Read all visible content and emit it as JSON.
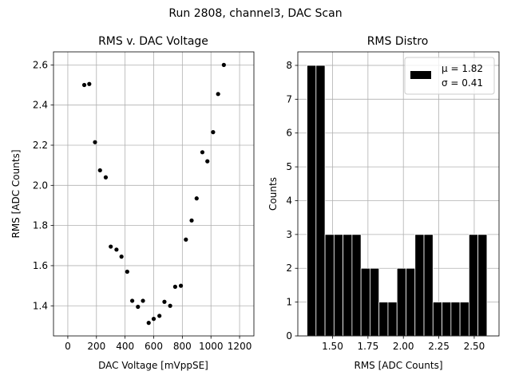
{
  "suptitle": "Run 2808, channel3, DAC Scan",
  "chart_data": [
    {
      "type": "scatter",
      "title": "RMS v. DAC Voltage",
      "xlabel": "DAC Voltage [mVppSE]",
      "ylabel": "RMS [ADC Counts]",
      "xlim": [
        -100,
        1300
      ],
      "ylim": [
        1.25,
        2.665
      ],
      "xticks": [
        0,
        200,
        400,
        600,
        800,
        1000,
        1200
      ],
      "yticks": [
        1.4,
        1.6,
        1.8,
        2.0,
        2.2,
        2.4,
        2.6
      ],
      "ytick_labels": [
        "1.4",
        "1.6",
        "1.8",
        "2.0",
        "2.2",
        "2.4",
        "2.6"
      ],
      "grid": true,
      "marker_color": "#000000",
      "points": [
        {
          "x": 115,
          "y": 2.5
        },
        {
          "x": 150,
          "y": 2.505
        },
        {
          "x": 190,
          "y": 2.215
        },
        {
          "x": 225,
          "y": 2.075
        },
        {
          "x": 265,
          "y": 2.04
        },
        {
          "x": 300,
          "y": 1.695
        },
        {
          "x": 340,
          "y": 1.68
        },
        {
          "x": 375,
          "y": 1.645
        },
        {
          "x": 415,
          "y": 1.57
        },
        {
          "x": 450,
          "y": 1.425
        },
        {
          "x": 490,
          "y": 1.395
        },
        {
          "x": 525,
          "y": 1.425
        },
        {
          "x": 565,
          "y": 1.315
        },
        {
          "x": 600,
          "y": 1.335
        },
        {
          "x": 640,
          "y": 1.35
        },
        {
          "x": 675,
          "y": 1.42
        },
        {
          "x": 715,
          "y": 1.4
        },
        {
          "x": 750,
          "y": 1.495
        },
        {
          "x": 790,
          "y": 1.5
        },
        {
          "x": 825,
          "y": 1.73
        },
        {
          "x": 865,
          "y": 1.825
        },
        {
          "x": 900,
          "y": 1.935
        },
        {
          "x": 940,
          "y": 2.165
        },
        {
          "x": 975,
          "y": 2.12
        },
        {
          "x": 1015,
          "y": 2.265
        },
        {
          "x": 1050,
          "y": 2.455
        },
        {
          "x": 1090,
          "y": 2.6
        }
      ]
    },
    {
      "type": "bar",
      "subtype": "histogram",
      "title": "RMS Distro",
      "xlabel": "RMS [ADC Counts]",
      "ylabel": "Counts",
      "xlim": [
        1.255,
        2.675
      ],
      "ylim": [
        0,
        8.4
      ],
      "xticks": [
        1.5,
        1.75,
        2.0,
        2.25,
        2.5
      ],
      "xtick_labels": [
        "1.50",
        "1.75",
        "2.00",
        "2.25",
        "2.50"
      ],
      "yticks": [
        0,
        1,
        2,
        3,
        4,
        5,
        6,
        7,
        8
      ],
      "grid": true,
      "bar_color": "#000000",
      "bin_edges": [
        1.32,
        1.3835,
        1.447,
        1.5105,
        1.574,
        1.6375,
        1.701,
        1.7645,
        1.828,
        1.8915,
        1.955,
        2.0185,
        2.082,
        2.1455,
        2.209,
        2.2725,
        2.336,
        2.3995,
        2.463,
        2.5265,
        2.59
      ],
      "counts": [
        8,
        8,
        3,
        3,
        3,
        3,
        2,
        2,
        1,
        1,
        2,
        2,
        3,
        3,
        1,
        1,
        1,
        1,
        3,
        3
      ],
      "legend": {
        "placement": "top-right",
        "mu_text": "μ = 1.82",
        "sigma_text": "σ = 0.41"
      }
    }
  ]
}
